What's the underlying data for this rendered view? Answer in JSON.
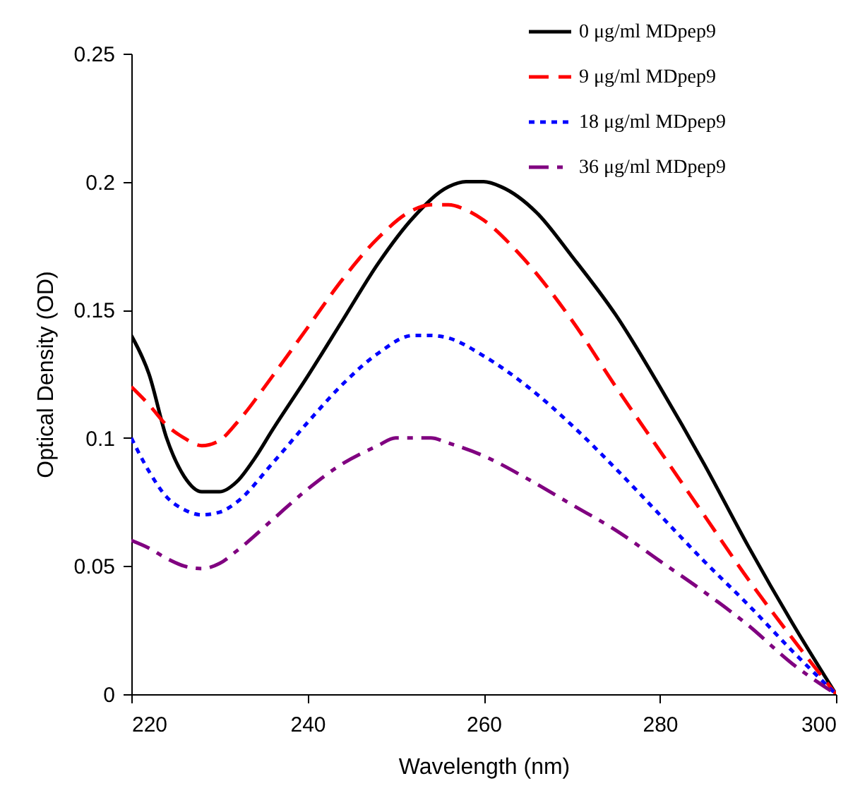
{
  "chart_data": {
    "type": "line",
    "xlabel": "Wavelength (nm)",
    "ylabel": "Optical Density (OD)",
    "xlim": [
      220,
      300
    ],
    "xticks": [
      220,
      240,
      260,
      280,
      300
    ],
    "ylim": [
      0,
      0.25
    ],
    "yticks": [
      0,
      0.05,
      0.1,
      0.15,
      0.2,
      0.25
    ],
    "grid": false,
    "legend": "top right",
    "marker": "none",
    "series": [
      {
        "name": "0 μg/ml MDpep9",
        "color": "#000000",
        "line_style": "solid",
        "x": [
          220,
          222,
          224,
          226,
          228,
          230,
          232,
          234,
          236,
          240,
          244,
          248,
          252,
          256,
          258,
          260,
          262,
          266,
          270,
          275,
          280,
          285,
          290,
          295,
          300
        ],
        "values": [
          0.14,
          0.125,
          0.1,
          0.085,
          0.079,
          0.079,
          0.083,
          0.092,
          0.103,
          0.124,
          0.146,
          0.168,
          0.186,
          0.198,
          0.2,
          0.2,
          0.198,
          0.188,
          0.171,
          0.148,
          0.12,
          0.09,
          0.058,
          0.028,
          0
        ]
      },
      {
        "name": "9 μg/ml MDpep9",
        "color": "#ff0000",
        "line_style": "dashed",
        "x": [
          220,
          222,
          224,
          226,
          228,
          230,
          232,
          236,
          240,
          244,
          248,
          252,
          254,
          256,
          258,
          260,
          264,
          270,
          275,
          280,
          285,
          290,
          295,
          300
        ],
        "values": [
          0.12,
          0.113,
          0.105,
          0.1,
          0.097,
          0.099,
          0.106,
          0.124,
          0.143,
          0.162,
          0.178,
          0.189,
          0.191,
          0.191,
          0.189,
          0.185,
          0.172,
          0.146,
          0.12,
          0.095,
          0.07,
          0.045,
          0.022,
          0
        ]
      },
      {
        "name": "18 μg/ml MDpep9",
        "color": "#0000ff",
        "line_style": "dotted",
        "x": [
          220,
          222,
          224,
          226,
          228,
          230,
          232,
          236,
          240,
          244,
          248,
          252,
          254,
          256,
          260,
          265,
          270,
          275,
          280,
          285,
          290,
          295,
          300
        ],
        "values": [
          0.1,
          0.087,
          0.077,
          0.072,
          0.07,
          0.071,
          0.075,
          0.09,
          0.106,
          0.121,
          0.133,
          0.14,
          0.14,
          0.139,
          0.132,
          0.12,
          0.105,
          0.088,
          0.07,
          0.052,
          0.035,
          0.017,
          0
        ]
      },
      {
        "name": "36 μg/ml MDpep9",
        "color": "#800080",
        "line_style": "dashdot",
        "x": [
          220,
          222,
          224,
          226,
          228,
          230,
          232,
          236,
          240,
          244,
          248,
          250,
          252,
          254,
          256,
          260,
          265,
          270,
          275,
          280,
          285,
          290,
          295,
          300
        ],
        "values": [
          0.06,
          0.057,
          0.053,
          0.05,
          0.049,
          0.051,
          0.056,
          0.068,
          0.08,
          0.09,
          0.097,
          0.1,
          0.1,
          0.1,
          0.098,
          0.093,
          0.084,
          0.074,
          0.064,
          0.052,
          0.04,
          0.027,
          0.012,
          0
        ]
      }
    ]
  }
}
